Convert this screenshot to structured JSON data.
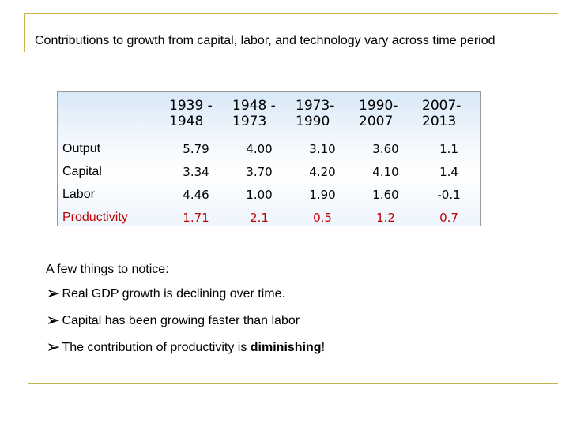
{
  "title": "Contributions to growth from capital, labor, and technology vary across time period",
  "table": {
    "headers": [
      "",
      "1939 - 1948",
      "1948 - 1973",
      "1973- 1990",
      "1990- 2007",
      "2007- 2013"
    ],
    "rows": [
      {
        "label": "Output",
        "values": [
          "5.79",
          "4.00",
          "3.10",
          "3.60",
          "1.1"
        ]
      },
      {
        "label": "Capital",
        "values": [
          "3.34",
          "3.70",
          "4.20",
          "4.10",
          "1.4"
        ]
      },
      {
        "label": "Labor",
        "values": [
          "4.46",
          "1.00",
          "1.90",
          "1.60",
          "-0.1"
        ]
      },
      {
        "label": "Productivity",
        "values": [
          "1.71",
          "2.1",
          "0.5",
          "1.2",
          "0.7"
        ]
      }
    ]
  },
  "notes": {
    "intro": "A few things to notice:",
    "bullet_icon": "arrow-bullet-icon",
    "bullets": [
      {
        "text": "Real GDP growth is declining over time."
      },
      {
        "text": "Capital has been growing faster than labor"
      },
      {
        "text": "The contribution of productivity is ",
        "emphasis": "diminishing",
        "suffix": "!"
      }
    ]
  },
  "colors": {
    "accent_line": "#c8b44a",
    "productivity_row": "#c00000",
    "table_header_tint": "#d7e8f7"
  }
}
